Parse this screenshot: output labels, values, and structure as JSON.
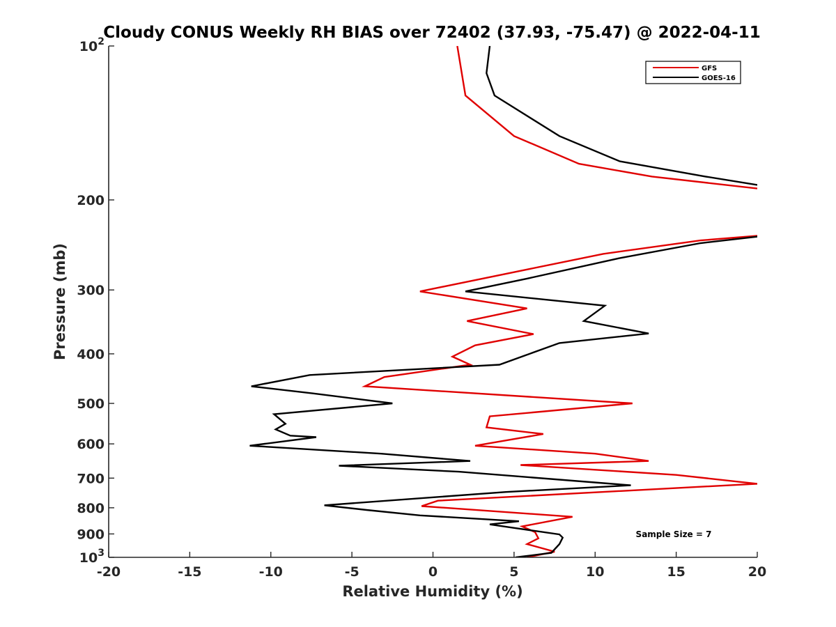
{
  "chart_data": {
    "type": "line",
    "title": "Cloudy CONUS Weekly RH BIAS over 72402 (37.93, -75.47) @ 2022-04-11",
    "xlabel": "Relative Humidity (%)",
    "ylabel": "Pressure (mb)",
    "xlim": [
      -20,
      20
    ],
    "ylim": [
      100,
      1000
    ],
    "y_scale": "log",
    "y_reversed": true,
    "x_ticks": [
      "-20",
      "-15",
      "-10",
      "-5",
      "0",
      "5",
      "10",
      "15",
      "20"
    ],
    "y_ticks": [
      {
        "value": 100,
        "label": "10",
        "sup": "2"
      },
      {
        "value": 200,
        "label": "200",
        "sup": ""
      },
      {
        "value": 300,
        "label": "300",
        "sup": ""
      },
      {
        "value": 400,
        "label": "400",
        "sup": ""
      },
      {
        "value": 500,
        "label": "500",
        "sup": ""
      },
      {
        "value": 600,
        "label": "600",
        "sup": ""
      },
      {
        "value": 700,
        "label": "700",
        "sup": ""
      },
      {
        "value": 800,
        "label": "800",
        "sup": ""
      },
      {
        "value": 900,
        "label": "900",
        "sup": ""
      },
      {
        "value": 1000,
        "label": "10",
        "sup": "3"
      }
    ],
    "grid": false,
    "legend_position": "top-right",
    "annotation": "Sample Size = 7",
    "series": [
      {
        "name": "GFS",
        "color": "#e00000",
        "points": [
          [
            1.5,
            100
          ],
          [
            2.0,
            125
          ],
          [
            5.0,
            150
          ],
          [
            9.0,
            170
          ],
          [
            13.5,
            180
          ],
          [
            20.0,
            190
          ],
          [
            null,
            205
          ],
          [
            20.0,
            235
          ],
          [
            16.5,
            240
          ],
          [
            10.5,
            255
          ],
          [
            -0.8,
            302
          ],
          [
            5.8,
            326
          ],
          [
            2.1,
            345
          ],
          [
            6.2,
            366
          ],
          [
            2.6,
            385
          ],
          [
            1.2,
            405
          ],
          [
            2.3,
            420
          ],
          [
            -3.0,
            444
          ],
          [
            -4.2,
            463
          ],
          [
            12.3,
            500
          ],
          [
            3.5,
            530
          ],
          [
            3.3,
            557
          ],
          [
            6.8,
            574
          ],
          [
            2.6,
            605
          ],
          [
            10.0,
            627
          ],
          [
            13.3,
            648
          ],
          [
            5.4,
            660
          ],
          [
            15.0,
            690
          ],
          [
            20.0,
            718
          ],
          [
            0.3,
            775
          ],
          [
            -0.7,
            794
          ],
          [
            8.6,
            833
          ],
          [
            5.5,
            870
          ],
          [
            6.3,
            893
          ],
          [
            6.5,
            918
          ],
          [
            5.8,
            942
          ],
          [
            7.5,
            975
          ],
          [
            5.8,
            1000
          ]
        ]
      },
      {
        "name": "GOES-16",
        "color": "#000000",
        "points": [
          [
            3.5,
            100
          ],
          [
            3.3,
            113
          ],
          [
            3.8,
            125
          ],
          [
            7.8,
            150
          ],
          [
            11.5,
            168
          ],
          [
            16.8,
            180
          ],
          [
            20.0,
            187
          ],
          [
            null,
            205
          ],
          [
            20.0,
            236
          ],
          [
            16.5,
            243
          ],
          [
            11.5,
            260
          ],
          [
            5.8,
            285
          ],
          [
            2.0,
            302
          ],
          [
            10.6,
            322
          ],
          [
            9.3,
            345
          ],
          [
            13.3,
            365
          ],
          [
            7.8,
            381
          ],
          [
            4.1,
            420
          ],
          [
            -7.6,
            440
          ],
          [
            -11.2,
            463
          ],
          [
            -7.4,
            478
          ],
          [
            -2.5,
            500
          ],
          [
            -9.8,
            525
          ],
          [
            -9.1,
            548
          ],
          [
            -9.7,
            562
          ],
          [
            -8.8,
            578
          ],
          [
            -7.2,
            582
          ],
          [
            -11.3,
            605
          ],
          [
            -3.2,
            627
          ],
          [
            2.3,
            648
          ],
          [
            -5.8,
            662
          ],
          [
            1.6,
            680
          ],
          [
            12.2,
            723
          ],
          [
            4.5,
            745
          ],
          [
            -6.7,
            791
          ],
          [
            -4.1,
            808
          ],
          [
            -0.8,
            828
          ],
          [
            5.3,
            850
          ],
          [
            3.5,
            862
          ],
          [
            4.9,
            875
          ],
          [
            7.8,
            902
          ],
          [
            8.0,
            915
          ],
          [
            7.8,
            942
          ],
          [
            7.3,
            980
          ],
          [
            5.1,
            1000
          ]
        ]
      }
    ]
  }
}
